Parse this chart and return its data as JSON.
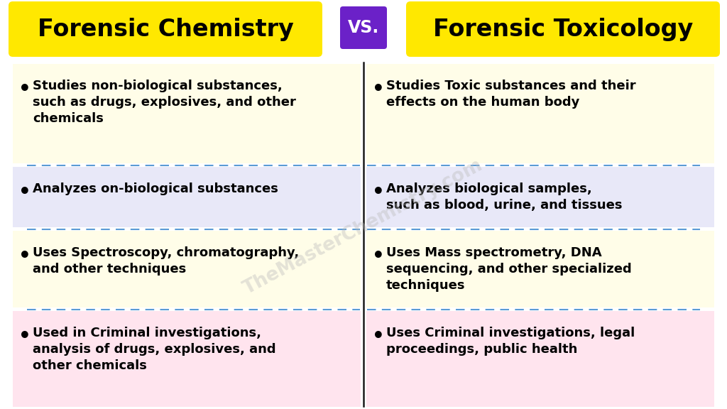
{
  "title_left": "Forensic Chemistry",
  "title_right": "Forensic Toxicology",
  "vs_text": "VS.",
  "title_bg_color": "#FFE800",
  "vs_bg_color": "#6B21C8",
  "vs_text_color": "#FFFFFF",
  "title_text_color": "#000000",
  "background_color": "#FFFFFF",
  "divider_color": "#1a1a1a",
  "dashed_line_color": "#5B9BD5",
  "left_items": [
    {
      "text": "Studies non-biological substances,\nsuch as drugs, explosives, and other\nchemicals",
      "bg": "#FFFDE8",
      "highlight": false
    },
    {
      "text": "Analyzes on-biological substances",
      "bg": "#E8E8F8",
      "highlight": true
    },
    {
      "text": "Uses Spectroscopy, chromatography,\nand other techniques",
      "bg": "#FFFDE8",
      "highlight": false
    },
    {
      "text": "Used in Criminal investigations,\nanalysis of drugs, explosives, and\nother chemicals",
      "bg": "#FFE4EE",
      "highlight": true
    }
  ],
  "right_items": [
    {
      "text": "Studies Toxic substances and their\neffects on the human body",
      "bg": "#FFFDE8",
      "highlight": false
    },
    {
      "text": "Analyzes biological samples,\nsuch as blood, urine, and tissues",
      "bg": "#E8E8F8",
      "highlight": true
    },
    {
      "text": "Uses Mass spectrometry, DNA\nsequencing, and other specialized\ntechniques",
      "bg": "#FFFDE8",
      "highlight": false
    },
    {
      "text": "Uses Criminal investigations, legal\nproceedings, public health",
      "bg": "#FFE4EE",
      "highlight": true
    }
  ],
  "watermark": "TheMasterChemistry.com",
  "watermark_color": "#BBBBBB",
  "figsize": [
    10.24,
    5.76
  ],
  "dpi": 100
}
